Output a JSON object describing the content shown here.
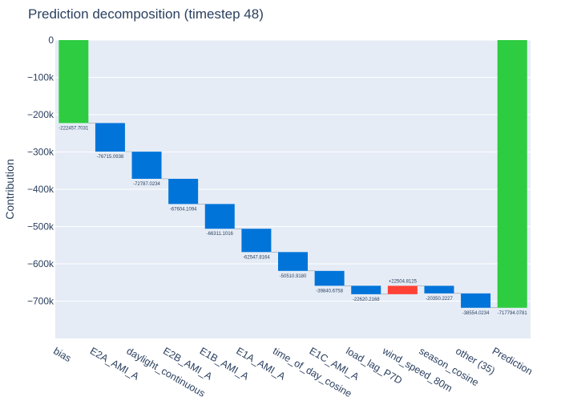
{
  "chart_data": {
    "type": "bar",
    "subtype": "waterfall",
    "title": "Prediction decomposition (timestep 48)",
    "xlabel": "",
    "ylabel": "Contribution",
    "ylim": [
      -800000,
      0
    ],
    "yticks": [
      0,
      -100000,
      -200000,
      -300000,
      -400000,
      -500000,
      -600000,
      -700000
    ],
    "ytick_labels": [
      "0",
      "−100k",
      "−200k",
      "−300k",
      "−400k",
      "−500k",
      "−600k",
      "−700k"
    ],
    "grid": true,
    "legend": "none",
    "colors": {
      "total": "#2ecc40",
      "decrease": "#0074d9",
      "increase": "#ff4136",
      "plot_bg": "#e5ecf6",
      "text": "#2a3f5f"
    },
    "categories": [
      "bias",
      "E2A_AMI_A",
      "daylight_continuous",
      "E2B_AMI_A",
      "E1B_AMI_A",
      "E1A_AMI_A",
      "time_of_day_cosine",
      "E1C_AMI_A",
      "load_lag_P7D",
      "wind_speed_80m",
      "season_cosine",
      "other (35)",
      "Prediction"
    ],
    "measures": [
      "absolute",
      "relative",
      "relative",
      "relative",
      "relative",
      "relative",
      "relative",
      "relative",
      "relative",
      "relative",
      "relative",
      "relative",
      "total"
    ],
    "values": [
      -222457.7031,
      -76715.0938,
      -72787.0234,
      -67604.1094,
      -66311.1016,
      -62547.8164,
      -50510.918,
      -39840.6758,
      -22620.2168,
      22504.8125,
      -20350.2227,
      -38554.0234,
      -717794.0781
    ],
    "value_labels": [
      "-222457.7031",
      "-76715.0938",
      "-72787.0234",
      "-67604.1094",
      "-66311.1016",
      "-62547.8164",
      "-50510.9180",
      "-39840.6758",
      "-22620.2168",
      "+22504.8125",
      "-20350.2227",
      "-38554.0234",
      "-717794.0781"
    ]
  }
}
